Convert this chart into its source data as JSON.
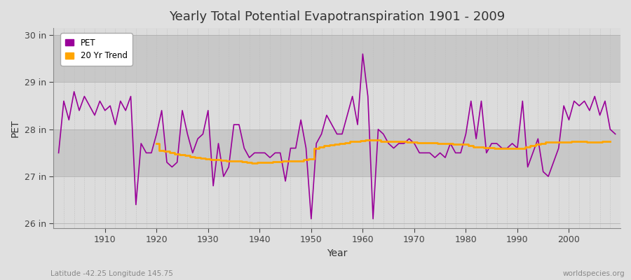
{
  "title": "Yearly Total Potential Evapotranspiration 1901 - 2009",
  "xlabel": "Year",
  "ylabel": "PET",
  "subtitle_left": "Latitude -42.25 Longitude 145.75",
  "subtitle_right": "worldspecies.org",
  "pet_color": "#990099",
  "trend_color": "#FFA500",
  "bg_color": "#E0E0E0",
  "plot_bg_color": "#D8D8D8",
  "band_light": "#DCDCDC",
  "band_dark": "#C8C8C8",
  "ylim": [
    25.9,
    30.15
  ],
  "yticks": [
    26,
    27,
    28,
    29,
    30
  ],
  "ytick_labels": [
    "26 in",
    "27 in",
    "28 in",
    "29 in",
    "30 in"
  ],
  "years": [
    1901,
    1902,
    1903,
    1904,
    1905,
    1906,
    1907,
    1908,
    1909,
    1910,
    1911,
    1912,
    1913,
    1914,
    1915,
    1916,
    1917,
    1918,
    1919,
    1920,
    1921,
    1922,
    1923,
    1924,
    1925,
    1926,
    1927,
    1928,
    1929,
    1930,
    1931,
    1932,
    1933,
    1934,
    1935,
    1936,
    1937,
    1938,
    1939,
    1940,
    1941,
    1942,
    1943,
    1944,
    1945,
    1946,
    1947,
    1948,
    1949,
    1950,
    1951,
    1952,
    1953,
    1954,
    1955,
    1956,
    1957,
    1958,
    1959,
    1960,
    1961,
    1962,
    1963,
    1964,
    1965,
    1966,
    1967,
    1968,
    1969,
    1970,
    1971,
    1972,
    1973,
    1974,
    1975,
    1976,
    1977,
    1978,
    1979,
    1980,
    1981,
    1982,
    1983,
    1984,
    1985,
    1986,
    1987,
    1988,
    1989,
    1990,
    1991,
    1992,
    1993,
    1994,
    1995,
    1996,
    1997,
    1998,
    1999,
    2000,
    2001,
    2002,
    2003,
    2004,
    2005,
    2006,
    2007,
    2008,
    2009
  ],
  "pet_values": [
    27.5,
    28.6,
    28.2,
    28.8,
    28.4,
    28.7,
    28.5,
    28.3,
    28.6,
    28.4,
    28.5,
    28.1,
    28.6,
    28.4,
    28.7,
    26.4,
    27.7,
    27.5,
    27.5,
    27.9,
    28.4,
    27.3,
    27.2,
    27.3,
    28.4,
    27.9,
    27.5,
    27.8,
    27.9,
    28.4,
    26.8,
    27.7,
    27.0,
    27.2,
    28.1,
    28.1,
    27.6,
    27.4,
    27.5,
    27.5,
    27.5,
    27.4,
    27.5,
    27.5,
    26.9,
    27.6,
    27.6,
    28.2,
    27.6,
    26.1,
    27.7,
    27.9,
    28.3,
    28.1,
    27.9,
    27.9,
    28.3,
    28.7,
    28.1,
    29.6,
    28.7,
    26.1,
    28.0,
    27.9,
    27.7,
    27.6,
    27.7,
    27.7,
    27.8,
    27.7,
    27.5,
    27.5,
    27.5,
    27.4,
    27.5,
    27.4,
    27.7,
    27.5,
    27.5,
    27.9,
    28.6,
    27.8,
    28.6,
    27.5,
    27.7,
    27.7,
    27.6,
    27.6,
    27.7,
    27.6,
    28.6,
    27.2,
    27.5,
    27.8,
    27.1,
    27.0,
    27.3,
    27.6,
    28.5,
    28.2,
    28.6,
    28.5,
    28.6,
    28.4,
    28.7,
    28.3,
    28.6,
    28.0,
    27.9
  ],
  "trend_values": [
    null,
    null,
    null,
    null,
    null,
    null,
    null,
    null,
    null,
    null,
    null,
    null,
    null,
    null,
    null,
    null,
    null,
    null,
    null,
    27.7,
    27.55,
    27.53,
    27.5,
    27.48,
    27.46,
    27.44,
    27.42,
    27.4,
    27.38,
    27.37,
    27.36,
    27.35,
    27.34,
    27.33,
    27.32,
    27.32,
    27.31,
    27.3,
    27.29,
    27.3,
    27.3,
    27.3,
    27.31,
    27.31,
    27.32,
    27.32,
    27.33,
    27.33,
    27.35,
    27.37,
    27.6,
    27.63,
    27.65,
    27.67,
    27.68,
    27.7,
    27.72,
    27.74,
    27.74,
    27.76,
    27.78,
    27.77,
    27.77,
    27.75,
    27.74,
    27.74,
    27.74,
    27.74,
    27.73,
    27.73,
    27.72,
    27.72,
    27.72,
    27.71,
    27.7,
    27.7,
    27.7,
    27.68,
    27.68,
    27.68,
    27.65,
    27.63,
    27.62,
    27.61,
    27.61,
    27.6,
    27.6,
    27.6,
    27.6,
    27.6,
    27.6,
    27.62,
    27.65,
    27.68,
    27.7,
    27.73,
    27.73,
    27.73,
    27.73,
    27.73,
    27.74,
    27.74,
    27.74,
    27.73,
    27.73,
    27.73,
    27.74,
    27.74
  ]
}
